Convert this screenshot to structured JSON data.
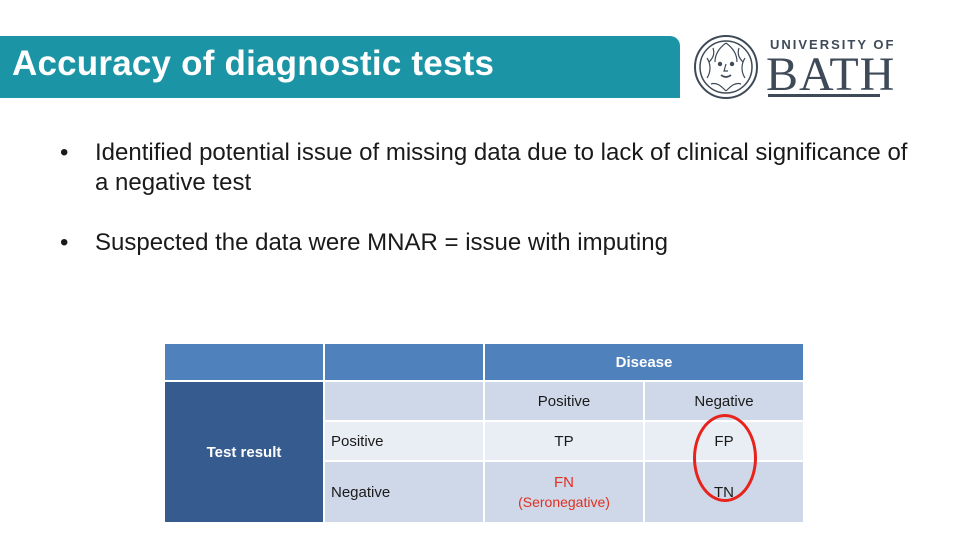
{
  "slide": {
    "title": "Accuracy of diagnostic tests",
    "logo": {
      "top_line": "UNIVERSITY OF",
      "main": "BATH"
    },
    "bullets": [
      "Identified potential issue of missing data due to lack of clinical significance of a negative test",
      "Suspected the data were MNAR = issue with imputing"
    ]
  },
  "table": {
    "disease_header": "Disease",
    "test_result_label": "Test result",
    "col_positive": "Positive",
    "col_negative": "Negative",
    "row_positive": "Positive",
    "row_negative": "Negative",
    "tp": "TP",
    "fp": "FP",
    "fn": "FN",
    "fn_note": "(Seronegative)",
    "tn": "TN"
  },
  "colors": {
    "title_bar": "#1b94a6",
    "header": "#4f81bd",
    "side_header": "#355b8f",
    "highlight": "#e03020"
  }
}
